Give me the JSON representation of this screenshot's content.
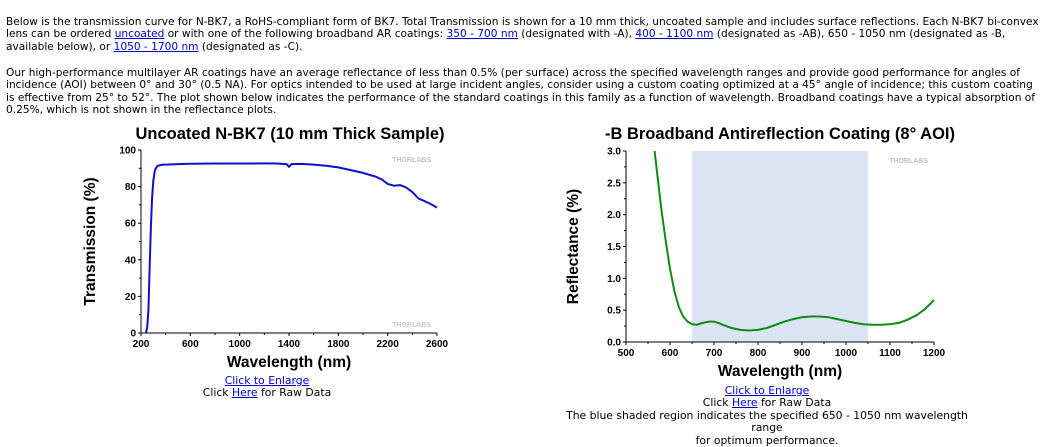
{
  "intro": {
    "p1_a": "Below is the transmission curve for N-BK7, a RoHS-compliant form of BK7. Total Transmission is shown for a 10 mm thick, uncoated sample and includes surface reflections. Each N-BK7 bi-convex lens can be ordered ",
    "link_uncoated": "uncoated",
    "p1_b": " or with one of the following broadband AR coatings: ",
    "link_350_700": "350 - 700 nm",
    "p1_c": " (designated with -A), ",
    "link_400_1100": "400 - 1100 nm",
    "p1_d": " (designated as -AB), 650 - 1050 nm (designated as -B, available below), or ",
    "link_1050_1700": "1050 - 1700 nm",
    "p1_e": " (designated as -C).",
    "p2": "Our high-performance multilayer AR coatings have an average reflectance of less than 0.5% (per surface) across the specified wavelength ranges and provide good performance for angles of incidence (AOI) between 0° and 30° (0.5 NA). For optics intended to be used at large incident angles, consider using a custom coating optimized at a 45° angle of incidence; this custom coating is effective from 25° to 52°. The plot shown below indicates the performance of the standard coatings in this family as a function of wavelength. Broadband coatings have a typical absorption of 0.25%, which is not shown in the reflectance plots."
  },
  "left_chart": {
    "enlarge_link": "Click to Enlarge",
    "raw_pre": "Click ",
    "raw_link": "Here",
    "raw_post": " for Raw Data"
  },
  "right_chart": {
    "enlarge_link": "Click to Enlarge",
    "raw_pre": "Click ",
    "raw_link": "Here",
    "raw_post": " for Raw Data",
    "caption_line1": "The blue shaded region indicates the specified 650 - 1050 nm wavelength range",
    "caption_line2": "for optimum performance."
  },
  "chart_data": [
    {
      "type": "line",
      "title": "Uncoated N-BK7 (10 mm Thick Sample)",
      "xlabel": "Wavelength (nm)",
      "ylabel": "Transmission (%)",
      "xlim": [
        200,
        2600
      ],
      "ylim": [
        0,
        100
      ],
      "x_ticks": [
        "200",
        "600",
        "1000",
        "1400",
        "1800",
        "2200",
        "2600"
      ],
      "y_ticks": [
        "0",
        "20",
        "40",
        "60",
        "80",
        "100"
      ],
      "grid": false,
      "line_color": "#1010c8",
      "watermark": "THORLABS",
      "series": [
        {
          "x": [
            240,
            250,
            260,
            270,
            280,
            290,
            300,
            310,
            320,
            330,
            340,
            360,
            380,
            400,
            500,
            600,
            800,
            1000,
            1200,
            1300,
            1380,
            1400,
            1420,
            1500,
            1600,
            1700,
            1800,
            1900,
            2000,
            2100,
            2150,
            2200,
            2250,
            2300,
            2350,
            2400,
            2450,
            2500,
            2550,
            2600
          ],
          "y": [
            0,
            3,
            12,
            35,
            58,
            74,
            83,
            88,
            90,
            91,
            91.5,
            91.8,
            92,
            92,
            92.3,
            92.5,
            92.6,
            92.6,
            92.7,
            92.6,
            92.3,
            90.8,
            92.3,
            92.4,
            92.0,
            91.4,
            90.5,
            89.0,
            87.5,
            85.5,
            84.0,
            81.5,
            80.5,
            80.8,
            79.5,
            77.0,
            73.5,
            72.0,
            70.5,
            68.5
          ]
        }
      ]
    },
    {
      "type": "line",
      "title": "-B Broadband Antireflection Coating (8° AOI)",
      "xlabel": "Wavelength (nm)",
      "ylabel": "Reflectance (%)",
      "xlim": [
        500,
        1200
      ],
      "ylim": [
        0,
        3
      ],
      "x_ticks": [
        "500",
        "600",
        "700",
        "800",
        "900",
        "1000",
        "1100",
        "1200"
      ],
      "y_ticks": [
        "0.0",
        "0.5",
        "1.0",
        "1.5",
        "2.0",
        "2.5",
        "3.0"
      ],
      "grid": false,
      "shaded_region": [
        650,
        1050
      ],
      "shade_color": "#dbe4f5",
      "line_color": "#108a10",
      "watermark": "THORLABS",
      "series": [
        {
          "x": [
            565,
            570,
            580,
            590,
            600,
            610,
            620,
            630,
            640,
            650,
            660,
            670,
            680,
            690,
            700,
            710,
            720,
            740,
            760,
            780,
            800,
            820,
            840,
            860,
            880,
            900,
            920,
            940,
            960,
            980,
            1000,
            1020,
            1040,
            1060,
            1080,
            1100,
            1120,
            1140,
            1160,
            1180,
            1200
          ],
          "y": [
            3.0,
            2.7,
            2.1,
            1.6,
            1.15,
            0.8,
            0.55,
            0.4,
            0.32,
            0.28,
            0.27,
            0.29,
            0.31,
            0.32,
            0.32,
            0.3,
            0.27,
            0.22,
            0.19,
            0.18,
            0.19,
            0.22,
            0.27,
            0.32,
            0.36,
            0.39,
            0.4,
            0.4,
            0.39,
            0.36,
            0.33,
            0.3,
            0.28,
            0.27,
            0.27,
            0.28,
            0.3,
            0.35,
            0.42,
            0.52,
            0.66
          ]
        }
      ]
    }
  ]
}
